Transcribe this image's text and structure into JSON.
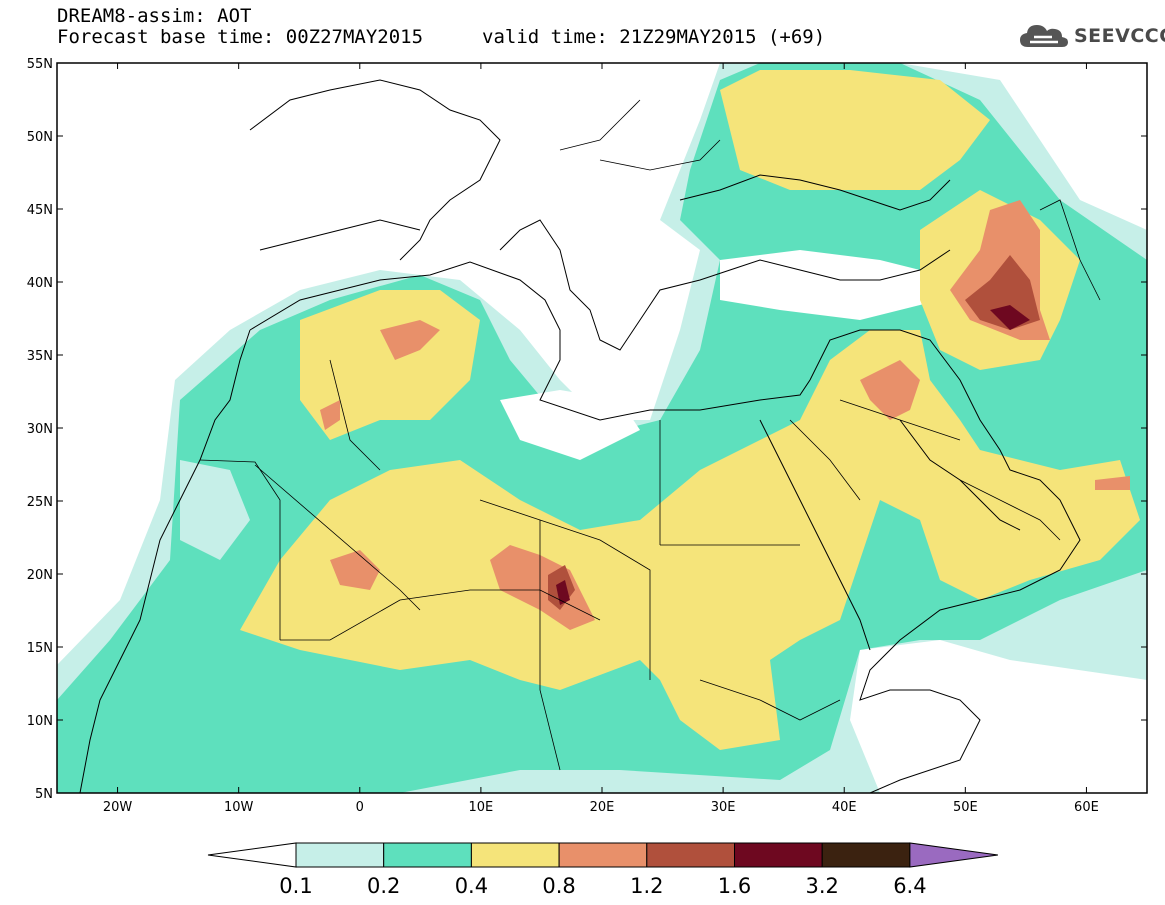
{
  "header": {
    "title": "DREAM8-assim: AOT",
    "base_time": "Forecast base time: 00Z27MAY2015",
    "valid_time": "valid time: 21Z29MAY2015 (+69)"
  },
  "logo": {
    "text": "SEEVCCC",
    "icon": "cloud-icon"
  },
  "map": {
    "lon_range": [
      -25,
      65
    ],
    "lat_range": [
      5,
      55
    ],
    "lat_ticks": [
      "55N",
      "50N",
      "45N",
      "40N",
      "35N",
      "30N",
      "25N",
      "20N",
      "15N",
      "10N",
      "5N"
    ],
    "lon_ticks": [
      "20W",
      "10W",
      "0",
      "10E",
      "20E",
      "30E",
      "40E",
      "50E",
      "60E"
    ]
  },
  "legend": {
    "labels": [
      "0.1",
      "0.2",
      "0.4",
      "0.8",
      "1.2",
      "1.6",
      "3.2",
      "6.4"
    ],
    "colors": [
      "#ffffff",
      "#c6efe8",
      "#5ee0bd",
      "#f5e47a",
      "#e8906a",
      "#b0503c",
      "#6e0820",
      "#3b2210",
      "#9a6ac0"
    ]
  }
}
